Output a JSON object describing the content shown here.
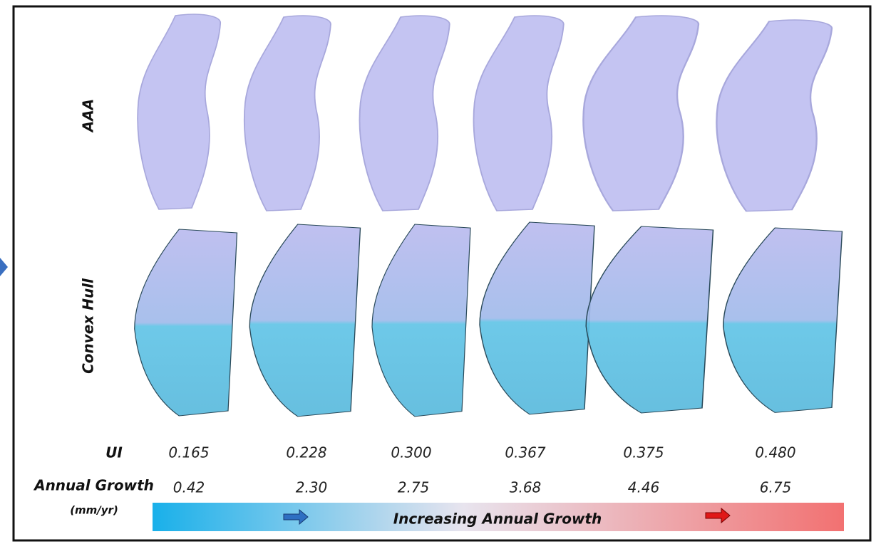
{
  "row_labels": {
    "aaa": "AAA",
    "hull": "Convex Hull"
  },
  "table": {
    "ui_label": "UI",
    "growth_label": "Annual Growth",
    "growth_unit": "(mm/yr)",
    "ui": [
      "0.165",
      "0.228",
      "0.300",
      "0.367",
      "0.375",
      "0.480"
    ],
    "growth": [
      "0.42",
      "2.30",
      "2.75",
      "3.68",
      "4.46",
      "6.75"
    ]
  },
  "banner": "Increasing Annual Growth"
}
